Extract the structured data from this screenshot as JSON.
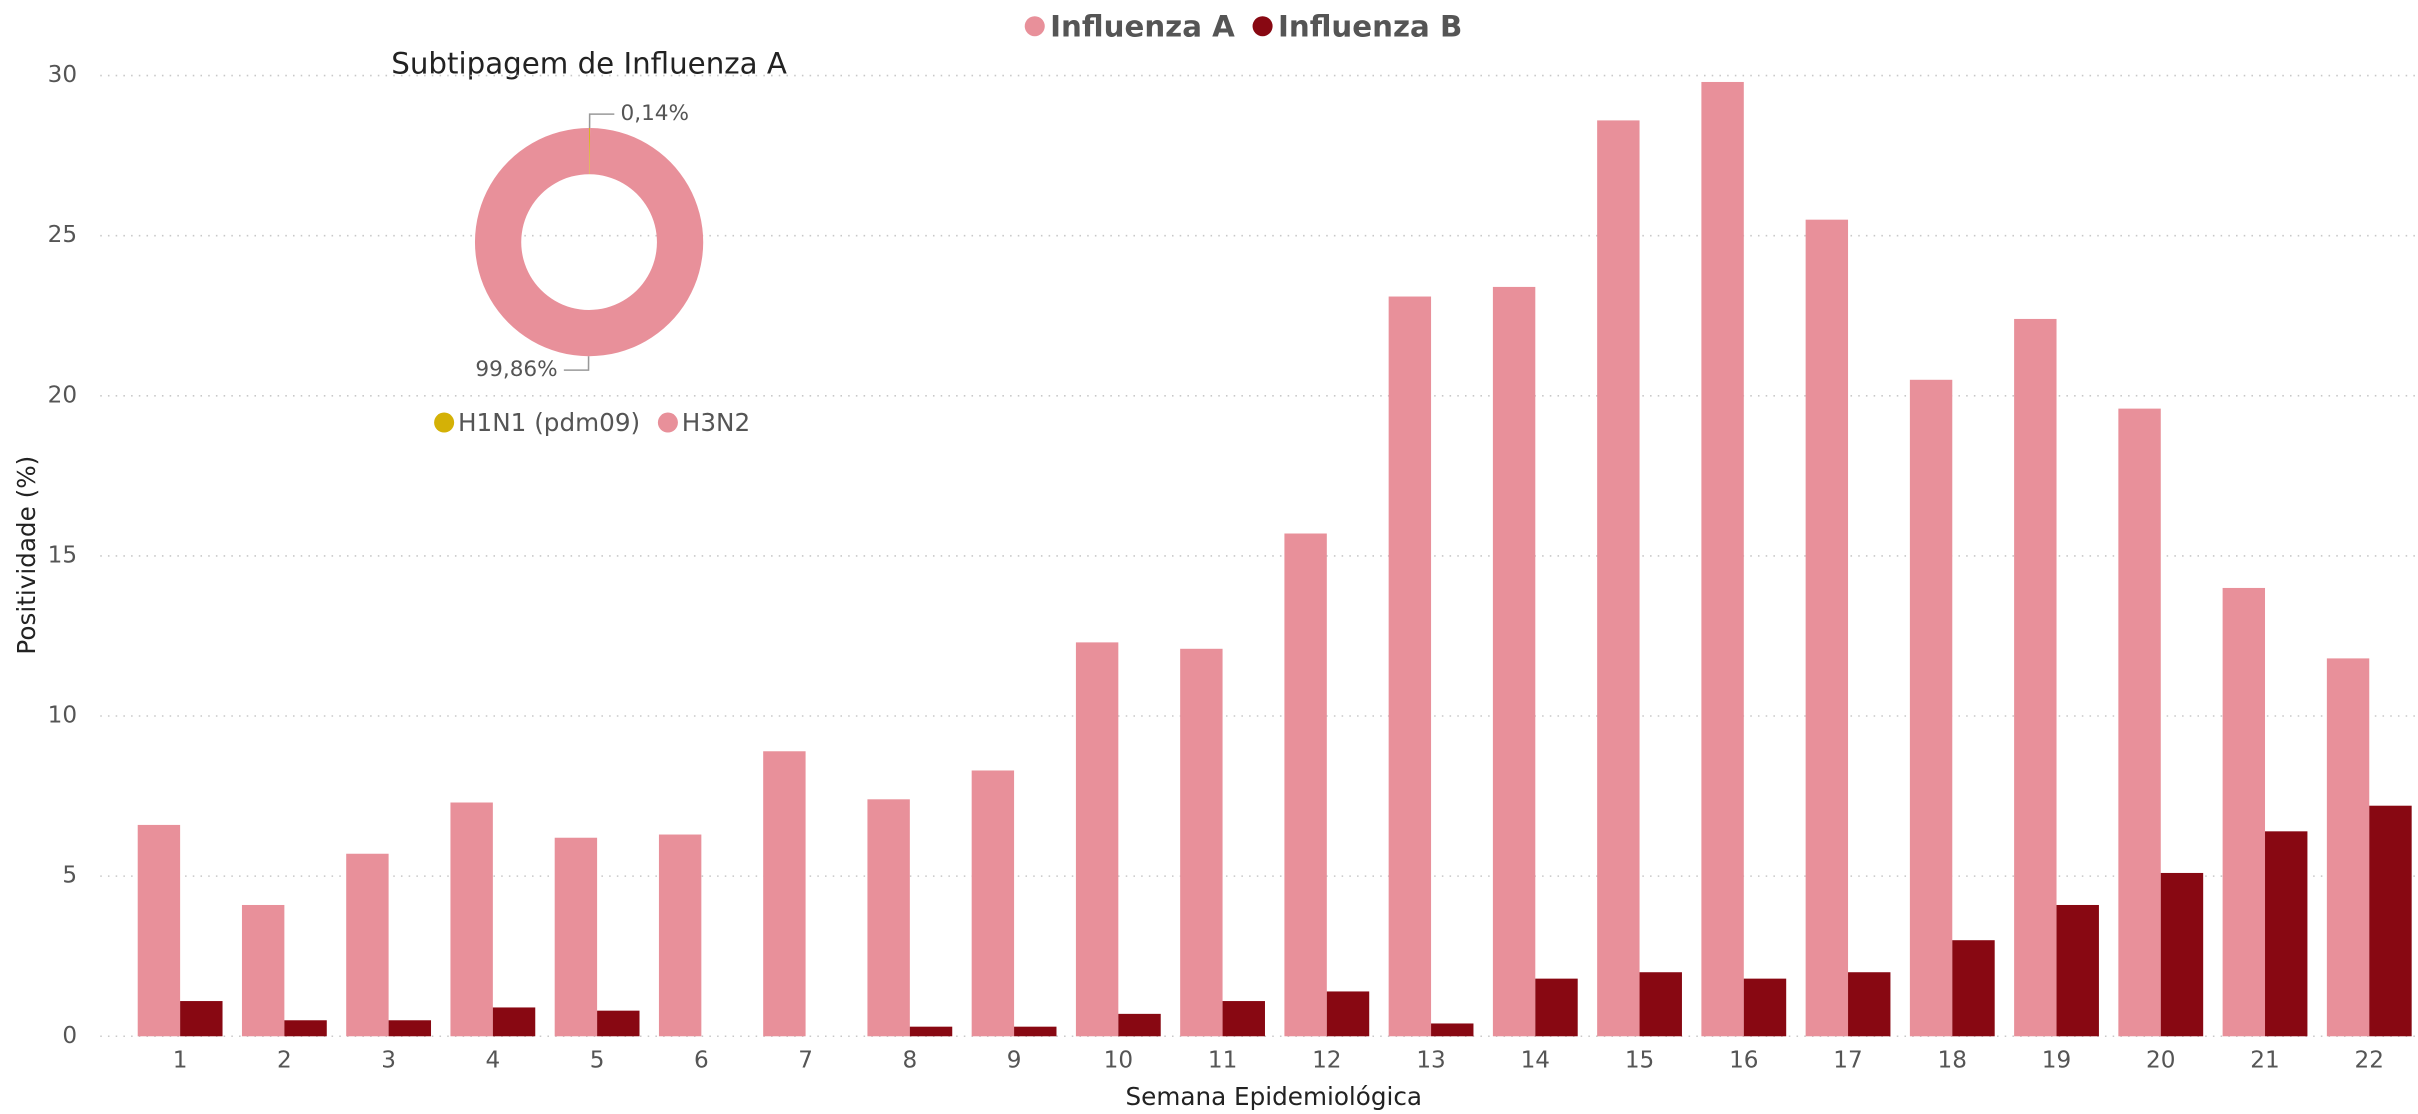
{
  "chart_data": [
    {
      "type": "bar",
      "x_label": "Semana Epidemiológica",
      "y_label": "Positividade (%)",
      "categories": [
        "1",
        "2",
        "3",
        "4",
        "5",
        "6",
        "7",
        "8",
        "9",
        "10",
        "11",
        "12",
        "13",
        "14",
        "15",
        "16",
        "17",
        "18",
        "19",
        "20",
        "21",
        "22"
      ],
      "series": [
        {
          "name": "Influenza A",
          "color": "#e8909a",
          "values": [
            6.6,
            4.1,
            5.7,
            7.3,
            6.2,
            6.3,
            8.9,
            7.4,
            8.3,
            12.3,
            12.1,
            15.7,
            23.1,
            23.4,
            28.6,
            29.8,
            25.5,
            20.5,
            22.4,
            19.6,
            14.0,
            11.8
          ]
        },
        {
          "name": "Influenza B",
          "color": "#880812",
          "values": [
            1.1,
            0.5,
            0.5,
            0.9,
            0.8,
            0,
            0,
            0.3,
            0.3,
            0.7,
            1.1,
            1.4,
            0.4,
            1.8,
            2.0,
            1.8,
            2.0,
            3.0,
            4.1,
            5.1,
            6.4,
            7.2
          ]
        }
      ],
      "ylim": [
        0,
        30
      ],
      "yticks": [
        0,
        5,
        10,
        15,
        20,
        25,
        30
      ],
      "grid": true,
      "legend": "top"
    },
    {
      "type": "pie",
      "title": "Subtipagem de Influenza A",
      "categories": [
        "H1N1 (pdm09)",
        "H3N2"
      ],
      "values": [
        0.14,
        99.86
      ],
      "value_labels": [
        "0,14%",
        "99,86%"
      ],
      "colors": [
        "#d4b106",
        "#e8909a"
      ],
      "donut": true,
      "legend": "bottom"
    }
  ]
}
